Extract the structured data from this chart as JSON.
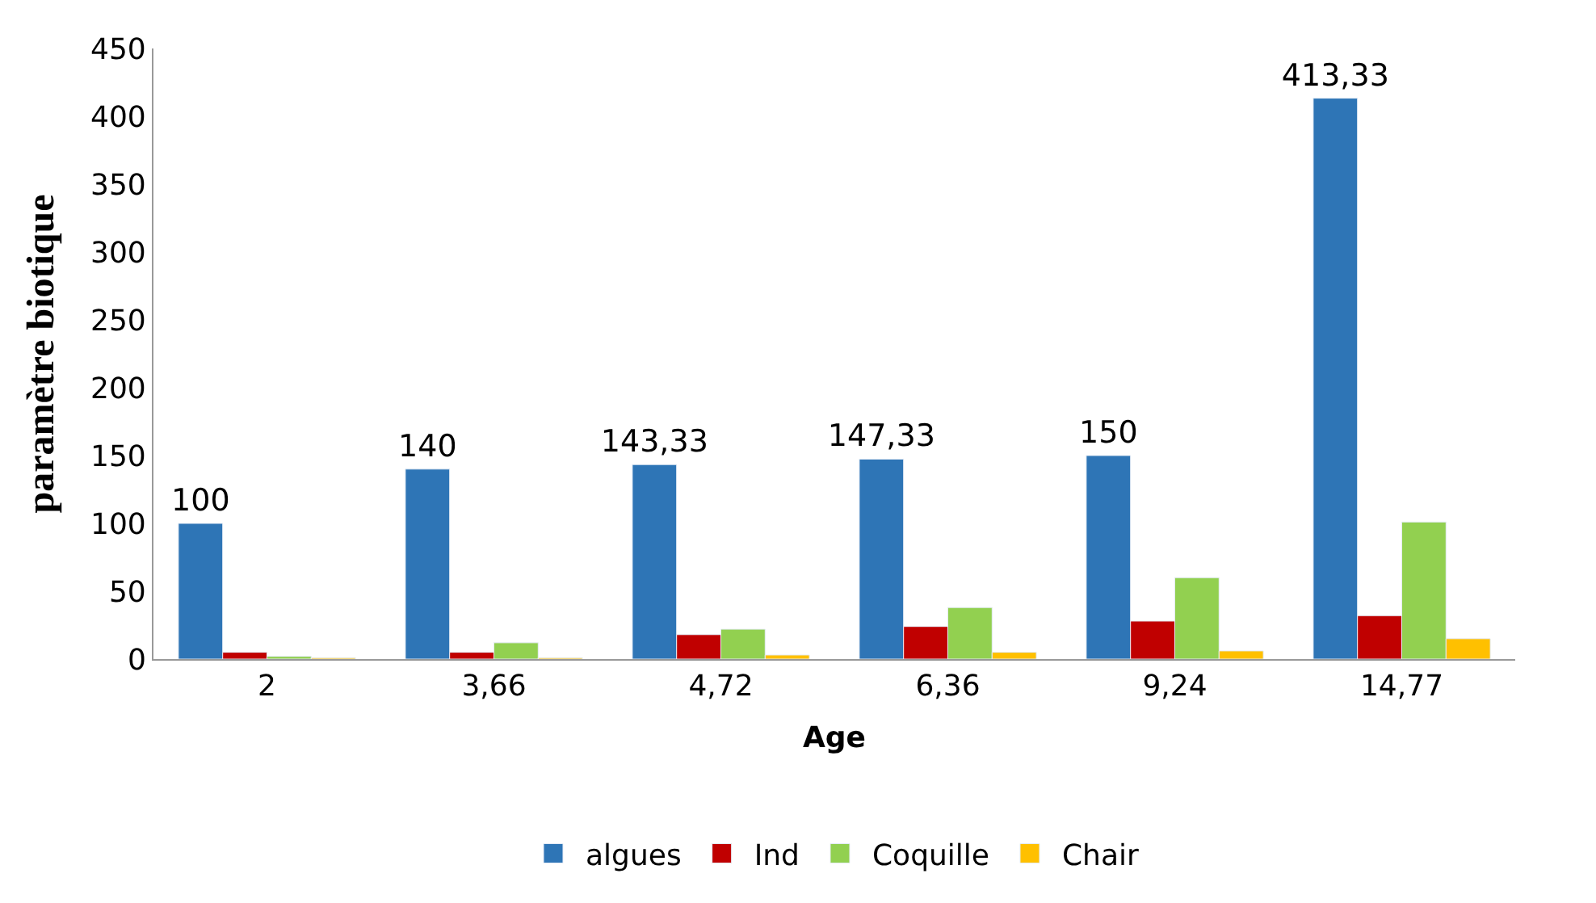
{
  "chart_data": {
    "type": "bar",
    "xlabel": "Age",
    "ylabel": "paramètre biotique",
    "categories": [
      "2",
      "3,66",
      "4,72",
      "6,36",
      "9,24",
      "14,77"
    ],
    "series": [
      {
        "name": "algues",
        "color": "#2e75b6",
        "values": [
          100,
          140,
          143.33,
          147.33,
          150,
          413.33
        ],
        "value_labels": [
          "100",
          "140",
          "143,33",
          "147,33",
          "150",
          "413,33"
        ]
      },
      {
        "name": "Ind",
        "color": "#c00000",
        "values": [
          5,
          5,
          18,
          24,
          28,
          32
        ]
      },
      {
        "name": "Coquille",
        "color": "#92d050",
        "values": [
          2,
          12,
          22,
          38,
          60,
          101
        ]
      },
      {
        "name": "Chair",
        "color": "#ffc000",
        "values": [
          1,
          1,
          3,
          5,
          6,
          15
        ]
      }
    ],
    "ylim": [
      0,
      450
    ],
    "yticks": [
      0,
      50,
      100,
      150,
      200,
      250,
      300,
      350,
      400,
      450
    ],
    "legend": "bottom"
  }
}
